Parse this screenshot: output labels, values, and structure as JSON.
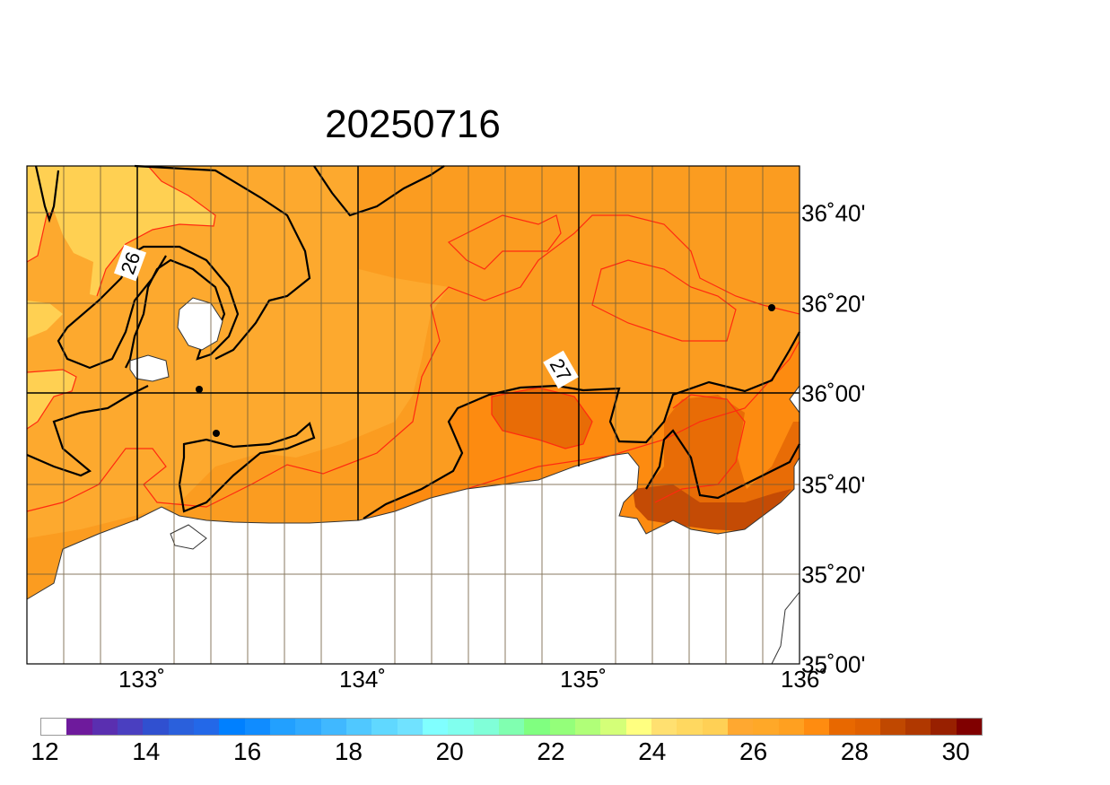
{
  "title": "20250716",
  "map": {
    "lat_labels": [
      "36˚40'",
      "36˚20'",
      "36˚00'",
      "35˚40'",
      "35˚20'",
      "35˚00'"
    ],
    "lon_labels": [
      "133˚",
      "134˚",
      "135˚",
      "136˚"
    ],
    "contour_labels": [
      "26",
      "27"
    ],
    "colors": {
      "land": "#ffffff",
      "t25_5": "#ffd052",
      "t26": "#fda92e",
      "t26_5": "#fb9c20",
      "t27": "#fd8b10",
      "t27_5": "#e86c06",
      "t28": "#c44b05",
      "isoline_major": "#000000",
      "isoline_minor": "#ff2a10"
    }
  },
  "colorbar": {
    "labels": [
      "12",
      "14",
      "16",
      "18",
      "20",
      "22",
      "24",
      "26",
      "28",
      "30"
    ],
    "colors": [
      "#ffffff",
      "#6e1a9c",
      "#5a2fb0",
      "#4a3fc0",
      "#3050d0",
      "#2a60dc",
      "#2368e8",
      "#0080ff",
      "#108cff",
      "#22a0ff",
      "#30aaff",
      "#40b8ff",
      "#50c8ff",
      "#60d8ff",
      "#70e2ff",
      "#80ffff",
      "#80ffee",
      "#80ffd8",
      "#80ffb0",
      "#80ff80",
      "#94ff7a",
      "#b0ff78",
      "#d4ff78",
      "#ffff80",
      "#ffe070",
      "#ffd860",
      "#ffd055",
      "#ffa830",
      "#ffa828",
      "#ffa020",
      "#ff8c10",
      "#e86800",
      "#e06000",
      "#c04800",
      "#b03800",
      "#982000",
      "#800000"
    ]
  }
}
